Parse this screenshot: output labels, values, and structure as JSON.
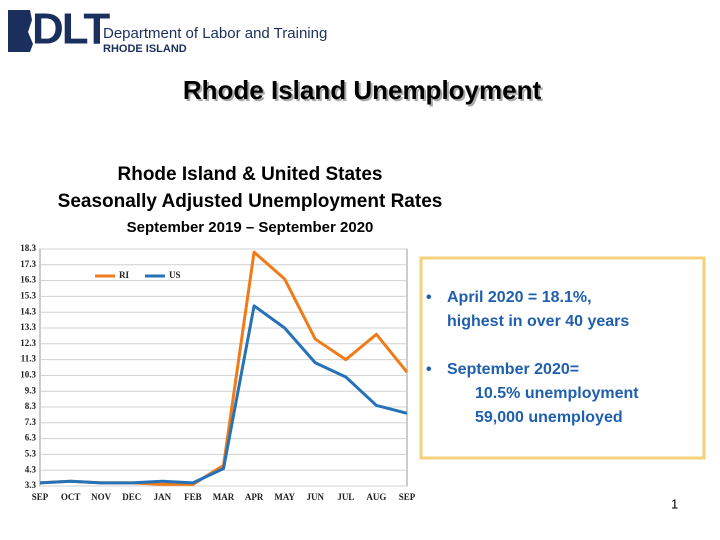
{
  "header": {
    "logo": "DLT",
    "department": "Department of Labor and Training",
    "state": "RHODE ISLAND"
  },
  "slide_title": "Rhode Island Unemployment",
  "chart_data": {
    "type": "line",
    "title": [
      "Rhode Island & United States",
      "Seasonally Adjusted Unemployment Rates"
    ],
    "subtitle": "September 2019 – September 2020",
    "categories": [
      "SEP",
      "OCT",
      "NOV",
      "DEC",
      "JAN",
      "FEB",
      "MAR",
      "APR",
      "MAY",
      "JUN",
      "JUL",
      "AUG",
      "SEP"
    ],
    "series": [
      {
        "name": "RI",
        "color": "#f07b1a",
        "values": [
          3.5,
          3.6,
          3.5,
          3.5,
          3.4,
          3.4,
          4.6,
          18.1,
          16.4,
          12.6,
          11.3,
          12.9,
          10.5
        ]
      },
      {
        "name": "US",
        "color": "#2672b8",
        "values": [
          3.5,
          3.6,
          3.5,
          3.5,
          3.6,
          3.5,
          4.4,
          14.7,
          13.3,
          11.1,
          10.2,
          8.4,
          7.9
        ]
      }
    ],
    "ylim": [
      3.3,
      18.3
    ],
    "yticks": [
      3.3,
      4.3,
      5.3,
      6.3,
      7.3,
      8.3,
      9.3,
      10.3,
      11.3,
      12.3,
      13.3,
      14.3,
      15.3,
      16.3,
      17.3,
      18.3
    ],
    "grid": true,
    "legend": "top-left"
  },
  "callout": {
    "bullets": [
      [
        "April 2020 = 18.1%,",
        "highest in over 40 years"
      ],
      [
        "September 2020=",
        "10.5% unemployment",
        "59,000 unemployed"
      ]
    ]
  },
  "page_number": "1"
}
